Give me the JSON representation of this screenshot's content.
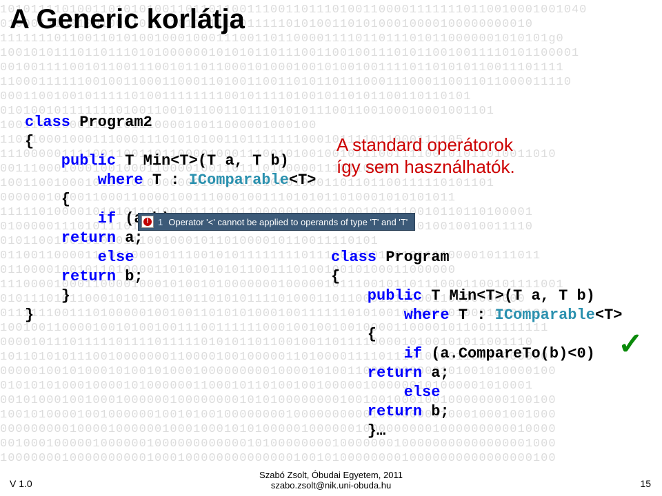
{
  "title": "A Generic korlátja",
  "binary_rows": [
    "1010111101001101010100110110110011100110111010011000011111110110010001001040",
    "010001110010010011011010110111001111101010011010100010000100000000010",
    "11111110110011010100100010001110011011000011110110111010110000001010101g0",
    "100101011101101110101000000101010110111001100100111010110010011110101100001",
    "0010011110010110011100101101100010100010010100100111101101010110011101111",
    "11000111111001001100011000110100110011010110111000111000110011011000011110",
    "0001100100101111101001111111100101111010010110101100110110101",
    "0101001011111110100110010110011011101010111001100100010001001101",
    "10011001000111010111000010011000001000100",
    "110110001000111000111010101001101111111000101111011000111105",
    "111000001111001100110110000100011100101001001011100111100101011010011010",
    "001110001000100100011000010011011101000001110110000",
    "1001100100010110101000000010010110100010001101101100111110101101",
    "00000010000110001100001001110001001110101011010001010101011",
    "111110100001010101101001011101011000001000010001001110010110110100001",
    "010000011101011101110011000000010000100100010110010011010010010011110",
    "0101100100101010111001000101101000010110011110101",
    "0110011000011101100010111001010111111110111101010110101111000010111011",
    "01100001001011010000110101010101100111010010010100011000000",
    "1110000100011000010001010010100000001000001011100101101110001100101111001",
    "01011101011000101011001101101010111101000110110001111000110000000000",
    "01111110011101000001001001101010100010011111101010010000100100010101100",
    "10010011000010010100100111001111110001001001001000011000010110011111111",
    "000010111011111011110111110101011011001001101111000010100101011001110",
    "10110101011100100000001100001001000001101000011110111010000110011000000",
    "000001001010001010010100010000000001000010100110001000000101001010000100",
    "010101010001000010100000011000101101001001000001000000101000001010001",
    "001010001001000100000010000000010101000000001001001000100100000000100100",
    "100101000010010000001001010010000000010000000000100000000100010001001000",
    "000000000100001000000100010001010100000100000010000000001000000000010000",
    "001000100000100000010000000000001010000000010000000100000000000000001000",
    "100000001000000000010001000000000000001001010000000010000000000000000100"
  ],
  "left_code": {
    "l1_a": "class",
    "l1_b": " Program2",
    "l2": "{",
    "l3_a": "    public",
    "l3_b": " T Min<T>(T a, T b)",
    "l4_a": "        where",
    "l4_b": " T : ",
    "l4_c": "IComparable",
    "l4_d": "<T>",
    "l5": "    {",
    "l6_a": "        if",
    "l6_b": " (a<b)",
    "l7_a": "    return",
    "l7_b": " a;",
    "l8": "        else",
    "l9_a": "    return",
    "l9_b": " b;",
    "l10": "    }",
    "l11": "}"
  },
  "right_note_l1": "A standard operátorok",
  "right_note_l2": "így sem használhatók.",
  "tooltip": {
    "icon_glyph": "!",
    "num": "1",
    "text": "Operator '<' cannot be applied to operands of type 'T' and 'T'"
  },
  "right_code": {
    "l1_a": "class",
    "l1_b": " Program",
    "l2": "{",
    "l3_a": "    public",
    "l3_b": " T Min<T>(T a, T b)",
    "l4_a": "        where",
    "l4_b": " T : ",
    "l4_c": "IComparable",
    "l4_d": "<T>",
    "l5": "    {",
    "l6_a": "        if",
    "l6_b": " (a.CompareTo(b)<0)",
    "l7_a": "    return",
    "l7_b": " a;",
    "l8": "        else",
    "l9_a": "    return",
    "l9_b": " b;",
    "l10": "    }…"
  },
  "check_mark": "✓",
  "version": "V 1.0",
  "footer_l1": "Szabó Zsolt, Óbudai Egyetem, 2011",
  "footer_l2": "szabo.zsolt@nik.uni-obuda.hu",
  "page_number": "15",
  "colors": {
    "keyword": "#0000ff",
    "type": "#2b91af",
    "note": "#cc0000",
    "tooltip_bg": "#3c5a78",
    "binary": "#dcdcdc",
    "check": "#0a8a0a"
  }
}
